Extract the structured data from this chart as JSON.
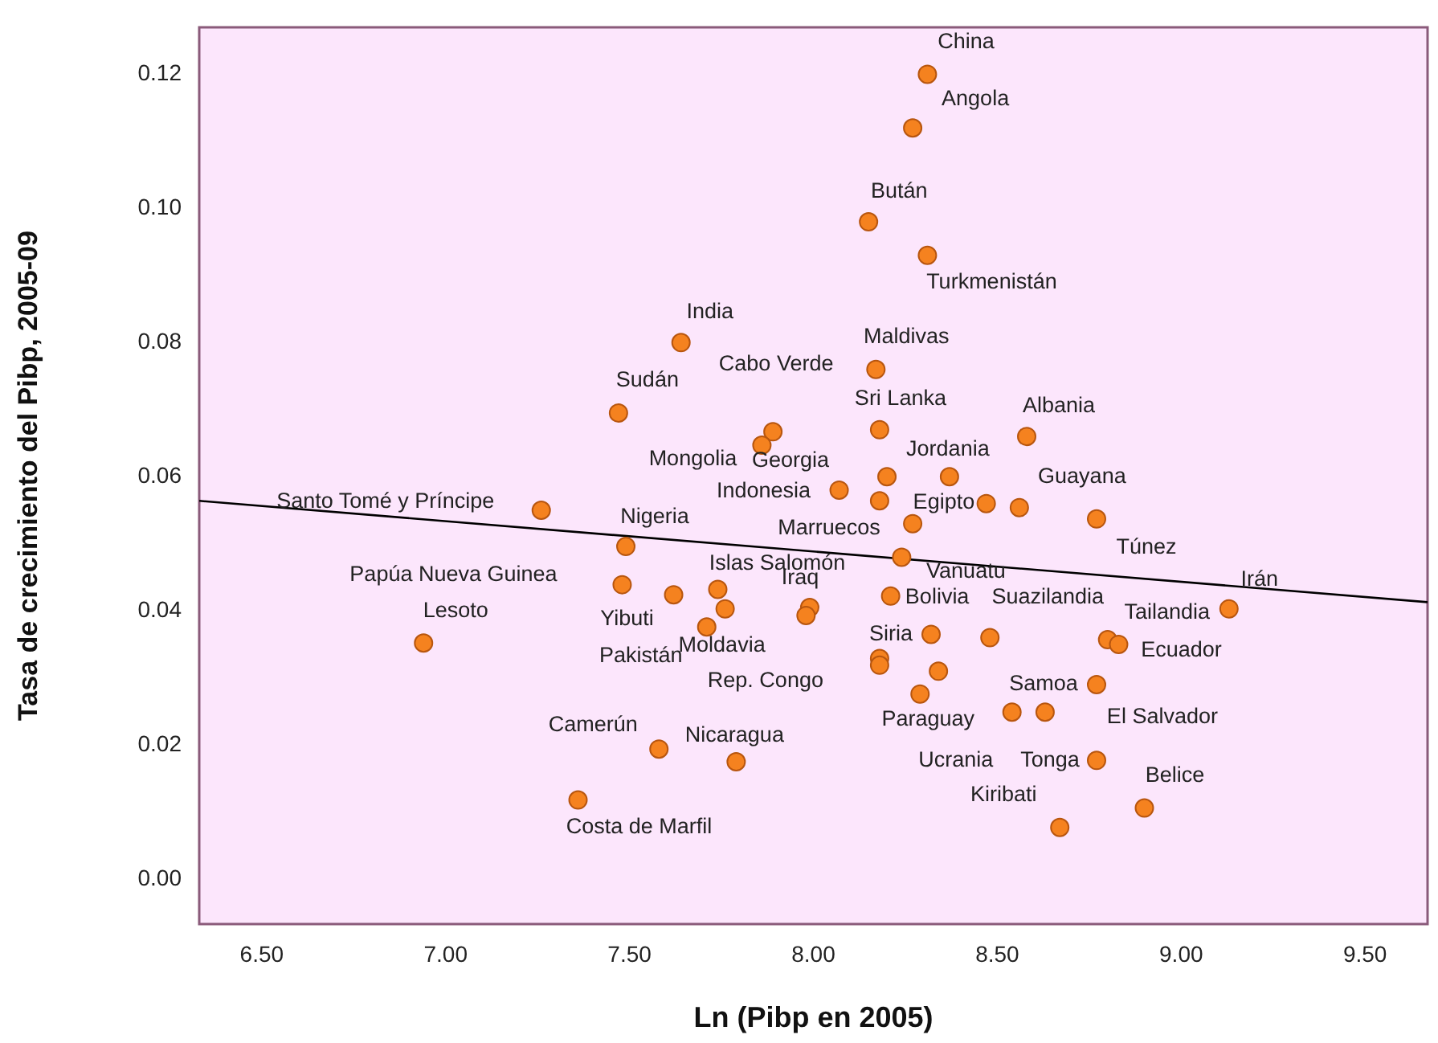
{
  "chart_data": {
    "type": "scatter",
    "xlabel": "Ln (Pibp en 2005)",
    "ylabel": "Tasa de crecimiento del Pibp, 2005-09",
    "marker": "circle",
    "grid": false,
    "legend": false,
    "xlim": [
      6.33,
      9.67
    ],
    "ylim": [
      -0.0067,
      0.127
    ],
    "xticks": [
      {
        "value": 6.5,
        "label": "6.50"
      },
      {
        "value": 7,
        "label": "7.00"
      },
      {
        "value": 7.5,
        "label": "7.50"
      },
      {
        "value": 8,
        "label": "8.00"
      },
      {
        "value": 8.5,
        "label": "8.50"
      },
      {
        "value": 9,
        "label": "9.00"
      },
      {
        "value": 9.5,
        "label": "9.50"
      }
    ],
    "yticks": [
      {
        "value": 0,
        "label": "0.00"
      },
      {
        "value": 0.02,
        "label": "0.02"
      },
      {
        "value": 0.04,
        "label": "0.04"
      },
      {
        "value": 0.06,
        "label": "0.06"
      },
      {
        "value": 0.08,
        "label": "0.08"
      },
      {
        "value": 0.1,
        "label": "0.10"
      },
      {
        "value": 0.12,
        "label": "0.12"
      }
    ],
    "series": [
      {
        "color": "#f5821f",
        "x": [
          8.31,
          8.27,
          8.15,
          8.31,
          7.64,
          8.17,
          7.47,
          7.89,
          7.86,
          8.18,
          8.58,
          8.2,
          8.37,
          8.07,
          8.18,
          8.47,
          8.56,
          8.77,
          8.27,
          8.24,
          7.26,
          7.49,
          7.48,
          7.62,
          7.74,
          7.76,
          7.71,
          6.94,
          7.99,
          7.98,
          8.21,
          8.32,
          8.48,
          8.18,
          8.18,
          8.34,
          8.29,
          8.8,
          8.83,
          9.13,
          8.77,
          8.54,
          8.63,
          8.77,
          8.9,
          8.67,
          7.58,
          7.79,
          7.36
        ],
        "values": [
          0.12,
          0.112,
          0.098,
          0.093,
          0.08,
          0.076,
          0.0695,
          0.0667,
          0.0647,
          0.067,
          0.066,
          0.06,
          0.06,
          0.058,
          0.0564,
          0.056,
          0.0554,
          0.0537,
          0.053,
          0.048,
          0.055,
          0.0496,
          0.0439,
          0.0424,
          0.0432,
          0.0403,
          0.0376,
          0.0352,
          0.0405,
          0.0393,
          0.0422,
          0.0365,
          0.036,
          0.0329,
          0.0319,
          0.031,
          0.0276,
          0.0357,
          0.035,
          0.0403,
          0.029,
          0.0249,
          0.0249,
          0.0177,
          0.0106,
          0.0077,
          0.0194,
          0.0175,
          0.0118
        ]
      },
      {
        "type": "line",
        "color": "#000000",
        "marker": "none",
        "x": [
          6.33,
          9.67
        ],
        "values": [
          0.0564,
          0.0413
        ]
      }
    ],
    "annotations": [
      {
        "text": "China",
        "x": 8.31,
        "y": 0.12
      },
      {
        "text": "Angola",
        "x": 8.27,
        "y": 0.112
      },
      {
        "text": "Bután",
        "x": 8.15,
        "y": 0.098
      },
      {
        "text": "Turkmenistán",
        "x": 8.31,
        "y": 0.093
      },
      {
        "text": "India",
        "x": 7.64,
        "y": 0.08
      },
      {
        "text": "Maldivas",
        "x": 8.17,
        "y": 0.076
      },
      {
        "text": "Cabo Verde",
        "x": 7.89,
        "y": 0.0667
      },
      {
        "text": "Sudán",
        "x": 7.47,
        "y": 0.0695
      },
      {
        "text": "Sri Lanka",
        "x": 8.18,
        "y": 0.067
      },
      {
        "text": "Albania",
        "x": 8.58,
        "y": 0.066
      },
      {
        "text": "Mongolia",
        "x": 7.86,
        "y": 0.0647
      },
      {
        "text": "Georgia",
        "x": 8.2,
        "y": 0.06
      },
      {
        "text": "Jordania",
        "x": 8.37,
        "y": 0.06
      },
      {
        "text": "Guayana",
        "x": 8.56,
        "y": 0.0554
      },
      {
        "text": "Indonesia",
        "x": 8.07,
        "y": 0.058
      },
      {
        "text": "Egipto",
        "x": 8.18,
        "y": 0.0564
      },
      {
        "text": "Marruecos",
        "x": 8.27,
        "y": 0.053
      },
      {
        "text": "Túnez",
        "x": 8.77,
        "y": 0.0537
      },
      {
        "text": "Santo Tomé y Príncipe",
        "x": 7.26,
        "y": 0.055
      },
      {
        "text": "Nigeria",
        "x": 7.49,
        "y": 0.0496
      },
      {
        "text": "Islas Salomón",
        "x": 7.74,
        "y": 0.0432
      },
      {
        "text": "Vanuatu",
        "x": 8.24,
        "y": 0.048
      },
      {
        "text": "Iraq",
        "x": 7.99,
        "y": 0.0405
      },
      {
        "text": "Irán",
        "x": 9.13,
        "y": 0.0403
      },
      {
        "text": "Papúa Nueva Guinea",
        "x": 7.48,
        "y": 0.0439
      },
      {
        "text": "Bolivia",
        "x": 8.21,
        "y": 0.0422
      },
      {
        "text": "Suazilandia",
        "x": 8.48,
        "y": 0.036
      },
      {
        "text": "Tailandia",
        "x": 8.8,
        "y": 0.0357
      },
      {
        "text": "Lesoto",
        "x": 6.94,
        "y": 0.0352
      },
      {
        "text": "Yibuti",
        "x": 7.62,
        "y": 0.0424
      },
      {
        "text": "Ecuador",
        "x": 8.83,
        "y": 0.035
      },
      {
        "text": "Pakistán",
        "x": 7.71,
        "y": 0.0376
      },
      {
        "text": "Moldavia",
        "x": 7.76,
        "y": 0.0403
      },
      {
        "text": "Siria",
        "x": 8.32,
        "y": 0.0365
      },
      {
        "text": "Rep. Congo",
        "x": 8.18,
        "y": 0.0319
      },
      {
        "text": "Samoa",
        "x": 8.77,
        "y": 0.029
      },
      {
        "text": "Paraguay",
        "x": 8.29,
        "y": 0.0276
      },
      {
        "text": "El Salvador",
        "x": 8.63,
        "y": 0.0249
      },
      {
        "text": "Camerún",
        "x": 7.58,
        "y": 0.0194
      },
      {
        "text": "Nicaragua",
        "x": 7.79,
        "y": 0.0175
      },
      {
        "text": "Ucrania",
        "x": 8.54,
        "y": 0.0249
      },
      {
        "text": "Tonga",
        "x": 8.77,
        "y": 0.0177
      },
      {
        "text": "Belice",
        "x": 8.9,
        "y": 0.0106
      },
      {
        "text": "Kiribati",
        "x": 8.67,
        "y": 0.0077
      },
      {
        "text": "Costa de Marfil",
        "x": 7.36,
        "y": 0.0118
      }
    ]
  }
}
